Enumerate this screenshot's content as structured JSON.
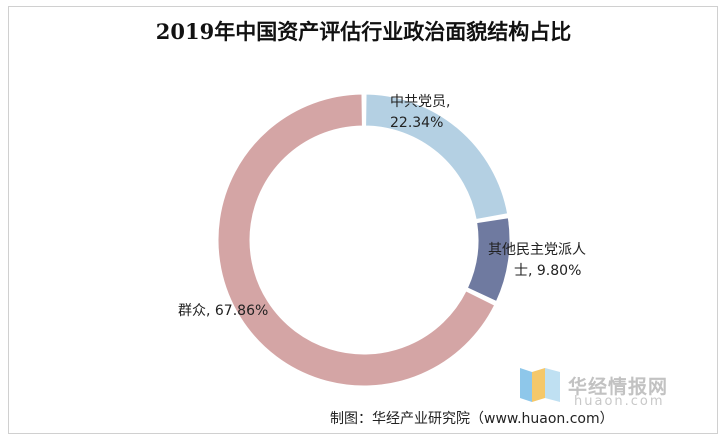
{
  "chart_data": {
    "type": "pie",
    "title": "2019年中国资产评估行业政治面貌结构占比",
    "slices": [
      {
        "name": "中共党员",
        "value": 22.34,
        "label_line1": "中共党员,",
        "label_line2": "22.34%",
        "color": "#b4d0e3"
      },
      {
        "name": "其他民主党派人士",
        "value": 9.8,
        "label_line1": "其他民主党派人",
        "label_line2": "士, 9.80%",
        "color": "#6f7aa0"
      },
      {
        "name": "群众",
        "value": 67.86,
        "label_line1": "群众, 67.86%",
        "label_line2": "",
        "color": "#d4a5a5"
      }
    ],
    "donut": true,
    "legend": "none"
  },
  "watermark": {
    "brand": "华经情报网",
    "url": "huaon.com",
    "colors": [
      "#f5c86a",
      "#8ec7ea"
    ]
  },
  "source": "制图：华经产业研究院（www.huaon.com）"
}
